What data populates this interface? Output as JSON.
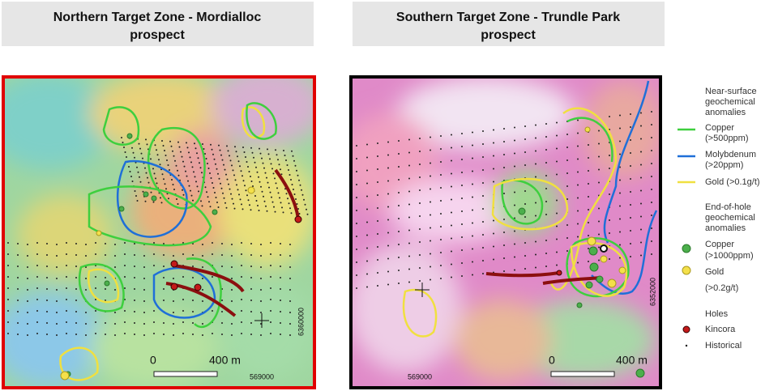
{
  "panels": [
    {
      "title": [
        "Northern Target Zone - Mordialloc",
        "prospect"
      ],
      "scale": [
        "0",
        "400 m"
      ],
      "easting": "569000",
      "northing": "6360000"
    },
    {
      "title": [
        "Southern Target Zone - Trundle Park",
        "prospect"
      ],
      "scale": [
        "0",
        "400 m"
      ],
      "easting": "569000",
      "northing": "6352000"
    }
  ],
  "legend": {
    "near_surface": {
      "heading": [
        "Near-surface",
        "geochemical",
        "anomalies"
      ],
      "items": [
        [
          "Copper",
          "(>500ppm)"
        ],
        [
          "Molybdenum",
          "(>20ppm)"
        ],
        [
          "Gold (>0.1g/t)"
        ]
      ]
    },
    "end_of_hole": {
      "heading": [
        "End-of-hole",
        "geochemical",
        "anomalies"
      ],
      "items": [
        [
          "Copper",
          "(>1000ppm)"
        ],
        [
          "Gold"
        ],
        [
          "(>0.2g/t)"
        ]
      ]
    },
    "holes": {
      "heading": "Holes",
      "items": [
        "Kincora",
        "Historical"
      ]
    }
  }
}
